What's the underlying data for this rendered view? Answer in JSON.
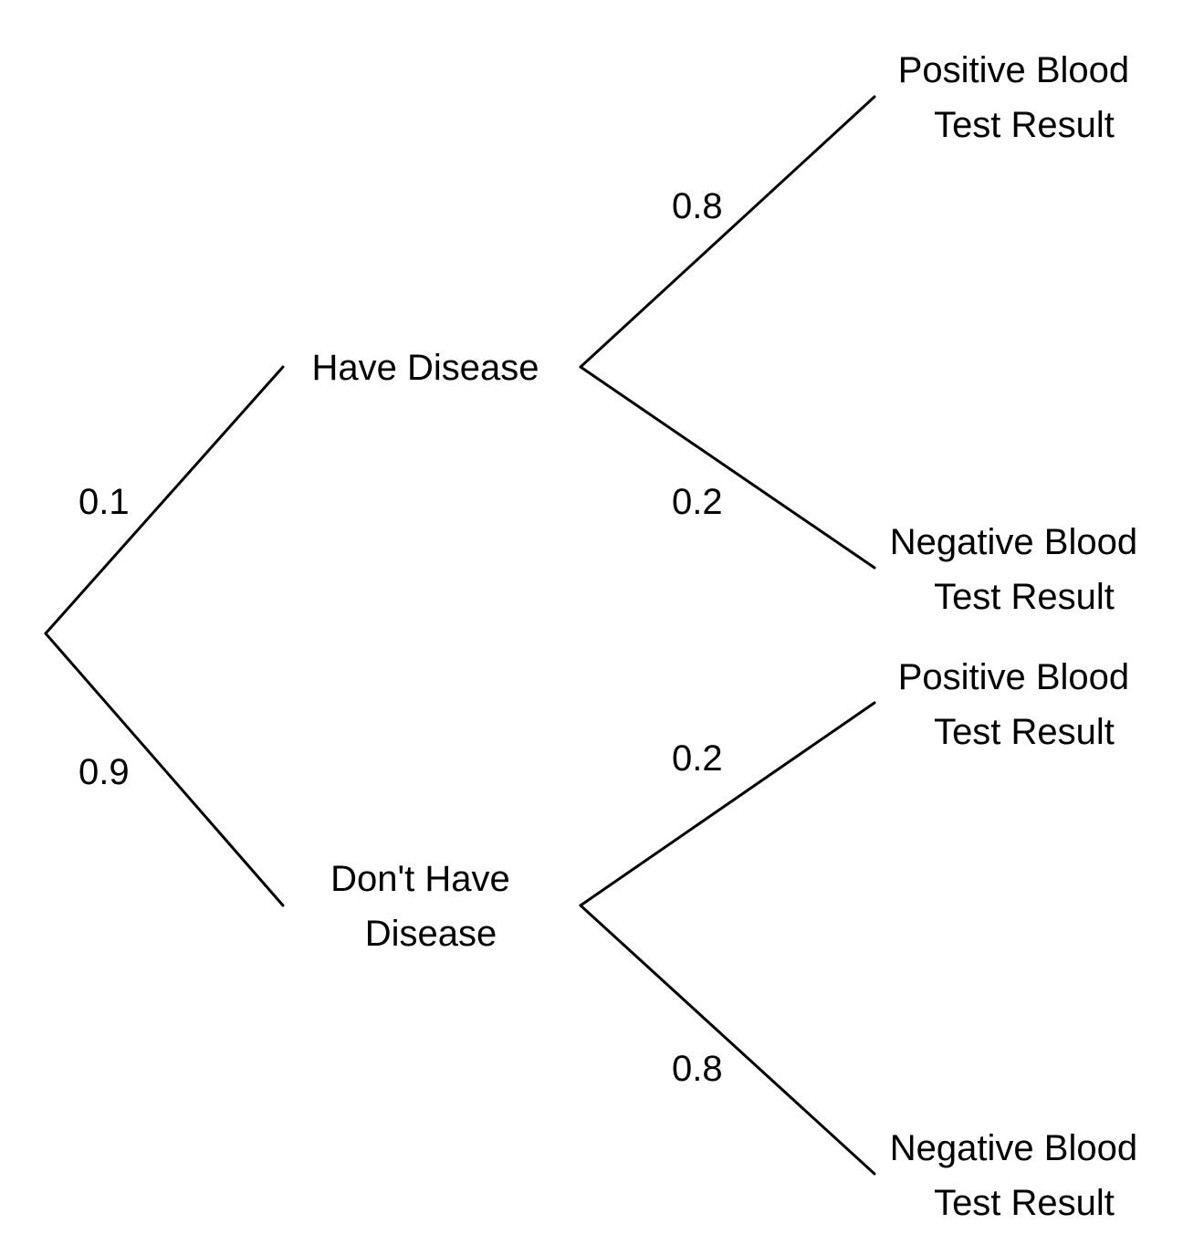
{
  "diagram": {
    "type": "probability-tree",
    "first_level": [
      {
        "id": "have",
        "label": "Have Disease",
        "probability": "0.1",
        "outcomes": [
          {
            "label_line1": "Positive Blood",
            "label_line2": "Test Result",
            "probability": "0.8"
          },
          {
            "label_line1": "Negative Blood",
            "label_line2": "Test Result",
            "probability": "0.2"
          }
        ]
      },
      {
        "id": "dont",
        "label_line1": "Don't Have",
        "label_line2": "Disease",
        "probability": "0.9",
        "outcomes": [
          {
            "label_line1": "Positive Blood",
            "label_line2": "Test Result",
            "probability": "0.2"
          },
          {
            "label_line1": "Negative Blood",
            "label_line2": "Test Result",
            "probability": "0.8"
          }
        ]
      }
    ]
  },
  "colors": {
    "line": "#000000",
    "text": "#000000",
    "background": "#ffffff"
  }
}
